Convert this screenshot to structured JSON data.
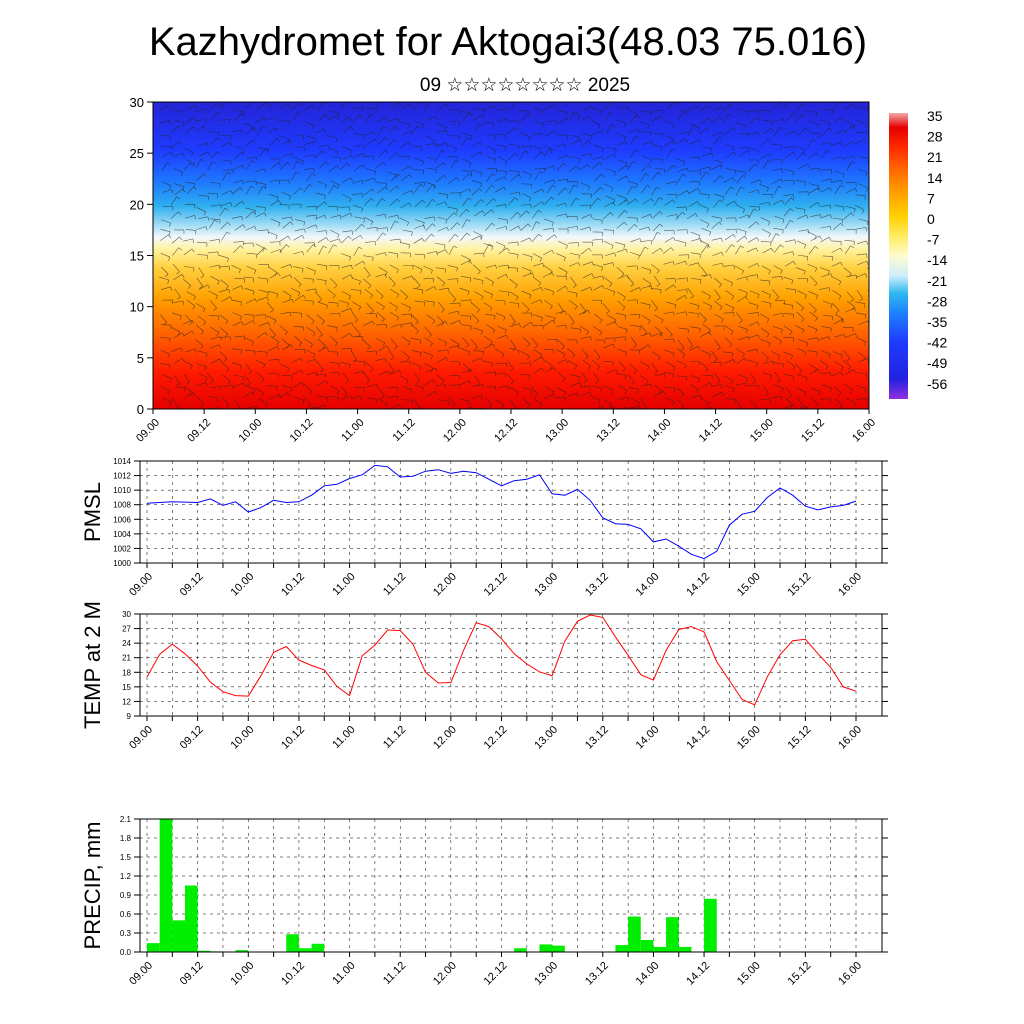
{
  "title": "Kazhydromet for Aktogai3(48.03 75.016)",
  "subtitle": "09 ☆☆☆☆☆☆☆☆ 2025",
  "time_ticks": [
    "09.00",
    "09.12",
    "10.00",
    "10.12",
    "11.00",
    "11.12",
    "12.00",
    "12.12",
    "13.00",
    "13.12",
    "14.00",
    "14.12",
    "15.00",
    "15.12",
    "16.00"
  ],
  "chart_data": [
    {
      "type": "heatmap",
      "ylim": [
        0,
        30
      ],
      "yticks": [
        "0",
        "5",
        "10",
        "15",
        "20",
        "25",
        "30"
      ],
      "colorbar": {
        "labels": [
          "35",
          "28",
          "21",
          "14",
          "7",
          "0",
          "-7",
          "-14",
          "-21",
          "-28",
          "-35",
          "-42",
          "-49",
          "-56"
        ],
        "colors": [
          "#f3a8a8",
          "#e60000",
          "#ff2a00",
          "#ff6a00",
          "#ffa000",
          "#ffd000",
          "#ffee70",
          "#fffbd0",
          "#e8f4fb",
          "#30b8f0",
          "#1e80ff",
          "#1e3cff",
          "#2222e0",
          "#9030e0"
        ]
      },
      "overlay": "wind barbs",
      "level_profile": [
        {
          "height": 0,
          "value": 28
        },
        {
          "height": 5,
          "value": 22
        },
        {
          "height": 10,
          "value": 10
        },
        {
          "height": 15,
          "value": -8
        },
        {
          "height": 18,
          "value": -22
        },
        {
          "height": 22,
          "value": -38
        },
        {
          "height": 26,
          "value": -52
        },
        {
          "height": 30,
          "value": -56
        }
      ]
    },
    {
      "type": "line",
      "ylabel": "PMSL",
      "ylim": [
        1000,
        1014
      ],
      "yticks": [
        "1000",
        "1002",
        "1004",
        "1006",
        "1008",
        "1010",
        "1012",
        "1014"
      ],
      "color": "#0000ff",
      "x_hours": [
        0,
        6,
        12,
        15,
        18,
        21,
        24,
        27,
        30,
        33,
        36,
        39,
        42,
        45,
        48,
        51,
        54,
        57,
        60,
        63,
        66,
        69,
        72,
        75,
        78,
        81,
        84,
        87,
        90,
        93,
        96,
        99,
        102,
        105,
        108,
        111,
        114,
        117,
        120,
        123,
        126,
        129,
        132,
        135,
        138,
        141,
        144,
        147,
        150,
        153,
        156,
        159,
        162,
        165,
        168
      ],
      "values": [
        1008.2,
        1008.4,
        1008.3,
        1008.8,
        1007.9,
        1008.4,
        1007.0,
        1007.6,
        1008.6,
        1008.3,
        1008.4,
        1009.3,
        1010.6,
        1010.8,
        1011.6,
        1012.1,
        1013.4,
        1013.2,
        1011.8,
        1011.9,
        1012.6,
        1012.8,
        1012.3,
        1012.6,
        1012.4,
        1011.5,
        1010.6,
        1011.3,
        1011.5,
        1012.1,
        1009.5,
        1009.3,
        1010.1,
        1008.6,
        1006.2,
        1005.4,
        1005.3,
        1004.7,
        1002.9,
        1003.3,
        1002.3,
        1001.2,
        1000.6,
        1001.6,
        1005.2,
        1006.7,
        1007.1,
        1009.0,
        1010.3,
        1009.3,
        1007.8,
        1007.3,
        1007.7,
        1007.9,
        1008.5
      ]
    },
    {
      "type": "line",
      "ylabel": "TEMP at 2 M",
      "ylim": [
        9,
        30
      ],
      "yticks": [
        "9",
        "12",
        "15",
        "18",
        "21",
        "24",
        "27",
        "30"
      ],
      "color": "#ff0000",
      "x_hours": [
        0,
        3,
        6,
        9,
        12,
        15,
        18,
        21,
        24,
        27,
        30,
        33,
        36,
        39,
        42,
        45,
        48,
        51,
        54,
        57,
        60,
        63,
        66,
        69,
        72,
        75,
        78,
        81,
        84,
        87,
        90,
        93,
        96,
        99,
        102,
        105,
        108,
        111,
        114,
        117,
        120,
        123,
        126,
        129,
        132,
        135,
        138,
        141,
        144,
        147,
        150,
        153,
        156,
        159,
        162,
        165,
        168
      ],
      "values": [
        17.0,
        21.7,
        23.8,
        21.8,
        19.3,
        16.0,
        14.0,
        13.2,
        13.1,
        17.3,
        22.1,
        23.3,
        20.5,
        19.4,
        18.5,
        15.1,
        13.2,
        21.4,
        23.6,
        26.7,
        26.6,
        23.8,
        18.0,
        15.8,
        15.9,
        22.5,
        28.2,
        27.4,
        24.9,
        21.8,
        19.7,
        18.1,
        17.3,
        24.4,
        28.5,
        29.8,
        29.3,
        25.3,
        21.5,
        17.5,
        16.4,
        22.5,
        26.8,
        27.4,
        26.3,
        20.2,
        16.3,
        12.4,
        11.3,
        17.1,
        21.6,
        24.5,
        24.8,
        21.8,
        19.0,
        15.0,
        14.1
      ]
    },
    {
      "type": "bar",
      "ylabel": "PRECIP, mm",
      "ylim": [
        0,
        2.1
      ],
      "yticks": [
        "0.0",
        "0.3",
        "0.6",
        "0.9",
        "1.2",
        "1.5",
        "1.8",
        "2.1"
      ],
      "color": "#00ee00",
      "bar_hours": 3,
      "x_hours": [
        3,
        6,
        9,
        12,
        15,
        18,
        21,
        24,
        27,
        30,
        33,
        36,
        39,
        42,
        45,
        48,
        51,
        54,
        57,
        60,
        63,
        66,
        69,
        72,
        75,
        78,
        81,
        84,
        87,
        90,
        93,
        96,
        99,
        102,
        105,
        108,
        111,
        114,
        117,
        120,
        123,
        126,
        129,
        132,
        135,
        138,
        141,
        144,
        147,
        150,
        153,
        156,
        159,
        162,
        165,
        168
      ],
      "values": [
        0.14,
        2.1,
        0.5,
        1.05,
        0.02,
        0.01,
        0.0,
        0.03,
        0.0,
        0.0,
        0.0,
        0.28,
        0.06,
        0.13,
        0.0,
        0.0,
        0.0,
        0.0,
        0.0,
        0.0,
        0.0,
        0.0,
        0.0,
        0.0,
        0.0,
        0.0,
        0.0,
        0.0,
        0.0,
        0.06,
        0.0,
        0.12,
        0.1,
        0.0,
        0.0,
        0.0,
        0.0,
        0.11,
        0.56,
        0.19,
        0.08,
        0.55,
        0.08,
        0.0,
        0.84,
        0.0,
        0.0,
        0.0,
        0.0,
        0.0,
        0.0,
        0.0,
        0.0,
        0.0,
        0.0,
        0.0
      ]
    }
  ]
}
